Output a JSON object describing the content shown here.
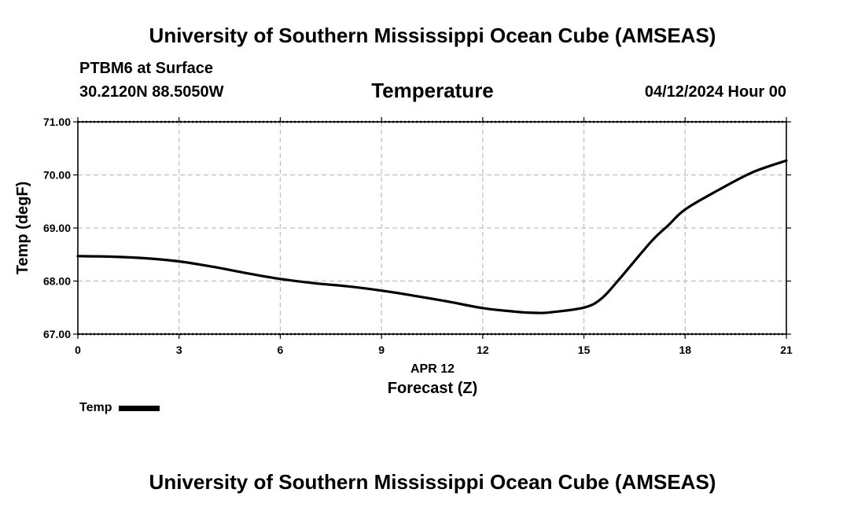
{
  "header": {
    "title": "University of Southern Mississippi Ocean Cube (AMSEAS)",
    "station": "PTBM6 at Surface",
    "coordinates": "30.2120N  88.5050W",
    "parameter": "Temperature",
    "datetime": "04/12/2024 Hour 00"
  },
  "footer": {
    "title": "University of Southern Mississippi Ocean Cube (AMSEAS)"
  },
  "chart_data": {
    "type": "line",
    "title": "Temperature",
    "xlabel": "Forecast (Z)",
    "xlabel_date": "APR 12",
    "ylabel": "Temp (degF)",
    "xlim": [
      0,
      21
    ],
    "ylim": [
      67.0,
      71.0
    ],
    "x_ticks": [
      0,
      3,
      6,
      9,
      12,
      15,
      18,
      21
    ],
    "x_tick_labels": [
      "0",
      "3",
      "6",
      "9",
      "12",
      "15",
      "18",
      "21"
    ],
    "y_ticks": [
      67.0,
      68.0,
      69.0,
      70.0,
      71.0
    ],
    "y_tick_labels": [
      "67.00",
      "68.00",
      "69.00",
      "70.00",
      "71.00"
    ],
    "grid": true,
    "legend_position": "bottom-left",
    "series": [
      {
        "name": "Temp",
        "color": "#000000",
        "x": [
          0,
          1,
          2,
          3,
          4,
          5,
          6,
          7,
          8,
          9,
          10,
          11,
          12,
          13,
          13.6,
          14,
          15,
          15.5,
          16,
          17,
          17.5,
          18,
          19,
          20,
          21
        ],
        "y": [
          68.47,
          68.46,
          68.43,
          68.37,
          68.27,
          68.15,
          68.04,
          67.96,
          67.9,
          67.82,
          67.72,
          67.61,
          67.49,
          67.42,
          67.4,
          67.41,
          67.5,
          67.66,
          68.0,
          68.75,
          69.05,
          69.35,
          69.72,
          70.05,
          70.27
        ]
      }
    ]
  }
}
